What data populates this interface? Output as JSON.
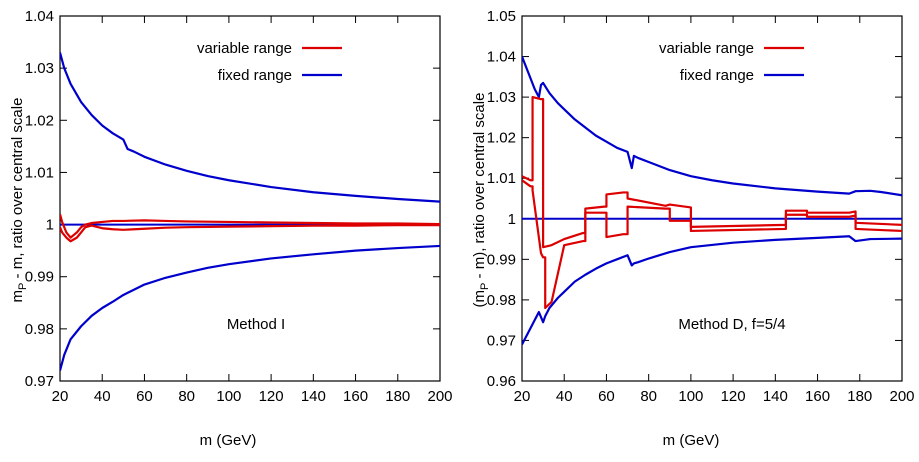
{
  "chart_data": [
    {
      "type": "line",
      "xlabel": "m (GeV)",
      "ylabel": "m_P - m, ratio over central scale",
      "ylabel_parts": {
        "pre": "m",
        "sub": "P",
        "post": " - m, ratio over central scale"
      },
      "annotation": "Method I",
      "xlim": [
        20,
        200
      ],
      "ylim": [
        0.97,
        1.04
      ],
      "xticks": [
        "20",
        "40",
        "60",
        "80",
        "100",
        "120",
        "140",
        "160",
        "180",
        "200"
      ],
      "yticks": [
        "0.97",
        "0.98",
        "0.99",
        "1",
        "1.01",
        "1.02",
        "1.03",
        "1.04"
      ],
      "legend_position": "top-right",
      "legend": [
        {
          "label": "variable range",
          "color": "#dd0000"
        },
        {
          "label": "fixed range",
          "color": "#0000cc"
        }
      ],
      "series": [
        {
          "name": "fixed range",
          "color": "#0000cc",
          "role": "upper",
          "x": [
            20,
            22,
            25,
            30,
            35,
            40,
            45,
            50,
            52,
            55,
            60,
            70,
            80,
            90,
            100,
            120,
            140,
            160,
            180,
            200
          ],
          "y": [
            1.033,
            1.03,
            1.027,
            1.0235,
            1.021,
            1.019,
            1.0175,
            1.0163,
            1.0145,
            1.014,
            1.013,
            1.0115,
            1.0103,
            1.0093,
            1.0085,
            1.0072,
            1.0062,
            1.0055,
            1.0049,
            1.0044
          ]
        },
        {
          "name": "fixed range",
          "color": "#0000cc",
          "role": "lower",
          "x": [
            20,
            22,
            25,
            30,
            35,
            40,
            45,
            50,
            55,
            60,
            70,
            80,
            90,
            100,
            120,
            140,
            160,
            180,
            200
          ],
          "y": [
            0.972,
            0.975,
            0.978,
            0.9805,
            0.9825,
            0.984,
            0.9852,
            0.9865,
            0.9875,
            0.9885,
            0.9898,
            0.9908,
            0.9917,
            0.9924,
            0.9935,
            0.9943,
            0.995,
            0.9955,
            0.9959
          ]
        },
        {
          "name": "fixed range",
          "color": "#0000cc",
          "role": "central",
          "x": [
            20,
            200
          ],
          "y": [
            1.0,
            1.0
          ]
        },
        {
          "name": "variable range",
          "color": "#dd0000",
          "role": "band-upper",
          "x": [
            20,
            21,
            23,
            25,
            28,
            30,
            32,
            35,
            40,
            45,
            50,
            60,
            70,
            80,
            100,
            120,
            140,
            160,
            180,
            200
          ],
          "y": [
            1.002,
            1.0005,
            0.9985,
            0.9975,
            0.9985,
            0.9995,
            1.0,
            1.0003,
            1.0005,
            1.0007,
            1.0007,
            1.0008,
            1.0007,
            1.0006,
            1.0005,
            1.0004,
            1.0003,
            1.0002,
            1.0002,
            1.0001
          ]
        },
        {
          "name": "variable range",
          "color": "#dd0000",
          "role": "band-lower",
          "x": [
            20,
            21,
            23,
            25,
            28,
            30,
            32,
            35,
            40,
            45,
            50,
            60,
            70,
            80,
            100,
            120,
            140,
            160,
            180,
            200
          ],
          "y": [
            0.9995,
            0.9985,
            0.9975,
            0.9968,
            0.9975,
            0.9985,
            0.9995,
            0.9998,
            0.9993,
            0.9991,
            0.999,
            0.9992,
            0.9994,
            0.9995,
            0.9996,
            0.9997,
            0.9998,
            0.9998,
            0.9999,
            0.9999
          ]
        }
      ]
    },
    {
      "type": "line",
      "xlabel": "m (GeV)",
      "ylabel": "(m_P - m), ratio over central scale",
      "ylabel_parts": {
        "pre": "(m",
        "sub": "P",
        "post": " - m), ratio over central scale"
      },
      "annotation": "Method D, f=5/4",
      "xlim": [
        20,
        200
      ],
      "ylim": [
        0.96,
        1.05
      ],
      "xticks": [
        "20",
        "40",
        "60",
        "80",
        "100",
        "120",
        "140",
        "160",
        "180",
        "200"
      ],
      "yticks": [
        "0.96",
        "0.97",
        "0.98",
        "0.99",
        "1",
        "1.01",
        "1.02",
        "1.03",
        "1.04",
        "1.05"
      ],
      "legend_position": "top-right",
      "legend": [
        {
          "label": "variable range",
          "color": "#dd0000"
        },
        {
          "label": "fixed range",
          "color": "#0000cc"
        }
      ],
      "series": [
        {
          "name": "fixed range",
          "color": "#0000cc",
          "role": "upper",
          "x": [
            20,
            23,
            26,
            28,
            29,
            30,
            33,
            37,
            40,
            45,
            50,
            55,
            60,
            65,
            70,
            72,
            73,
            75,
            80,
            90,
            100,
            110,
            120,
            140,
            160,
            175,
            178,
            185,
            190,
            200
          ],
          "y": [
            1.04,
            1.036,
            1.032,
            1.03,
            1.033,
            1.0335,
            1.031,
            1.0285,
            1.027,
            1.0245,
            1.0225,
            1.0205,
            1.019,
            1.0175,
            1.0165,
            1.0125,
            1.0155,
            1.015,
            1.014,
            1.012,
            1.0105,
            1.0095,
            1.0087,
            1.0075,
            1.0067,
            1.0062,
            1.0068,
            1.0069,
            1.0066,
            1.0058
          ]
        },
        {
          "name": "fixed range",
          "color": "#0000cc",
          "role": "lower",
          "x": [
            20,
            23,
            26,
            28,
            30,
            31,
            33,
            37,
            40,
            45,
            50,
            55,
            60,
            65,
            70,
            72,
            73,
            75,
            80,
            90,
            100,
            120,
            140,
            160,
            175,
            178,
            185,
            200
          ],
          "y": [
            0.969,
            0.972,
            0.975,
            0.977,
            0.9745,
            0.976,
            0.978,
            0.9805,
            0.982,
            0.9845,
            0.9862,
            0.9877,
            0.989,
            0.99,
            0.991,
            0.9885,
            0.989,
            0.9893,
            0.9902,
            0.9918,
            0.993,
            0.9941,
            0.9948,
            0.9953,
            0.9957,
            0.9945,
            0.995,
            0.9951
          ]
        },
        {
          "name": "fixed range",
          "color": "#0000cc",
          "role": "central",
          "x": [
            20,
            200
          ],
          "y": [
            1.0,
            1.0
          ]
        },
        {
          "name": "variable range",
          "color": "#dd0000",
          "role": "band-upper",
          "x": [
            20,
            24,
            25,
            25,
            29,
            30,
            30,
            34,
            40,
            49,
            50,
            50,
            59,
            60,
            60,
            68,
            70,
            70,
            88,
            90,
            90,
            100,
            100,
            145,
            145,
            155,
            155,
            175,
            178,
            178,
            200
          ],
          "y": [
            1.0105,
            1.0095,
            1.0095,
            1.03,
            1.0295,
            1.0295,
            0.993,
            0.9935,
            0.995,
            0.9965,
            0.9965,
            1.0025,
            1.003,
            1.003,
            1.006,
            1.0065,
            1.0065,
            1.005,
            1.0032,
            1.0035,
            1.0035,
            1.0028,
            0.998,
            0.9985,
            1.002,
            1.002,
            1.0015,
            1.0015,
            1.0018,
            0.999,
            0.9985
          ]
        },
        {
          "name": "variable range",
          "color": "#dd0000",
          "role": "band-lower",
          "x": [
            20,
            24,
            25,
            25,
            29,
            30,
            31,
            31,
            34,
            40,
            49,
            50,
            50,
            59,
            60,
            60,
            68,
            70,
            70,
            88,
            90,
            90,
            100,
            100,
            145,
            145,
            155,
            155,
            175,
            178,
            178,
            200
          ],
          "y": [
            1.0095,
            1.008,
            1.008,
            1.007,
            0.9915,
            0.9905,
            0.9905,
            0.978,
            0.9795,
            0.9935,
            0.9945,
            0.9945,
            1.0015,
            1.0015,
            1.0015,
            0.9955,
            0.9962,
            0.9962,
            1.003,
            1.0025,
            1.0025,
            0.9995,
            0.9995,
            0.997,
            0.9975,
            1.001,
            1.001,
            1.0005,
            1.0005,
            1.0008,
            0.9975,
            0.997
          ]
        }
      ]
    }
  ]
}
